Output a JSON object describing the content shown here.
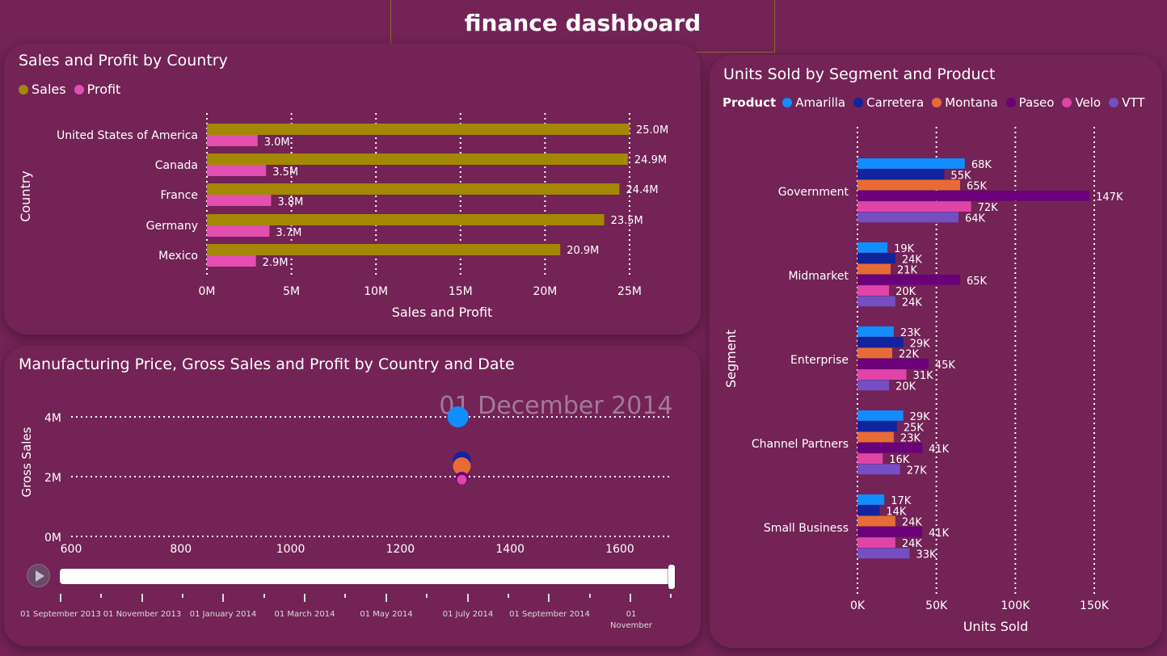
{
  "dashboard": {
    "title": "finance dashboard"
  },
  "colors": {
    "background": "#732356",
    "sales": "#a48705",
    "profit": "#e24fb1",
    "amarilla": "#118dff",
    "carretera": "#12239e",
    "montana": "#e66c37",
    "paseo": "#6b007b",
    "velo": "#e044a7",
    "vtt": "#744ec2"
  },
  "sales_profit": {
    "title": "Sales and Profit by Country",
    "legend": [
      {
        "label": "Sales"
      },
      {
        "label": "Profit"
      }
    ],
    "xlabel": "Sales and Profit",
    "ylabel": "Country",
    "countries": [
      "United States of America",
      "Canada",
      "France",
      "Germany",
      "Mexico"
    ],
    "sales_labels": [
      "25.0M",
      "24.9M",
      "24.4M",
      "23.5M",
      "20.9M"
    ],
    "profit_labels": [
      "3.0M",
      "3.5M",
      "3.8M",
      "3.7M",
      "2.9M"
    ],
    "xticks": [
      "0M",
      "5M",
      "10M",
      "15M",
      "20M",
      "25M"
    ]
  },
  "scatter": {
    "title": "Manufacturing Price, Gross Sales and Profit by Country and Date",
    "ylabel": "Gross Sales",
    "yticks": [
      "4M",
      "2M",
      "0M"
    ],
    "xticks": [
      "600",
      "800",
      "1000",
      "1200",
      "1400",
      "1600"
    ],
    "date_watermark": "01 December 2014",
    "timeline_labels": [
      "01 September 2013",
      "01 November 2013",
      "01 January 2014",
      "01 March 2014",
      "01 May 2014",
      "01 July 2014",
      "01 September 2014",
      "01",
      "November"
    ]
  },
  "units": {
    "title": "Units Sold by Segment and Product",
    "legend_title": "Product",
    "legend": [
      {
        "label": "Amarilla"
      },
      {
        "label": "Carretera"
      },
      {
        "label": "Montana"
      },
      {
        "label": "Paseo"
      },
      {
        "label": "Velo"
      },
      {
        "label": "VTT"
      }
    ],
    "xlabel": "Units Sold",
    "ylabel": "Segment",
    "xticks": [
      "0K",
      "50K",
      "100K",
      "150K"
    ],
    "segments": [
      {
        "name": "Government",
        "labels": [
          "68K",
          "55K",
          "65K",
          "147K",
          "72K",
          "64K"
        ]
      },
      {
        "name": "Midmarket",
        "labels": [
          "19K",
          "24K",
          "21K",
          "65K",
          "20K",
          "24K"
        ]
      },
      {
        "name": "Enterprise",
        "labels": [
          "23K",
          "29K",
          "22K",
          "45K",
          "31K",
          "20K"
        ]
      },
      {
        "name": "Channel Partners",
        "labels": [
          "29K",
          "25K",
          "23K",
          "41K",
          "16K",
          "27K"
        ]
      },
      {
        "name": "Small Business",
        "labels": [
          "17K",
          "14K",
          "24K",
          "41K",
          "24K",
          "33K"
        ]
      }
    ]
  },
  "chart_data": [
    {
      "type": "bar",
      "orientation": "horizontal",
      "title": "Sales and Profit by Country",
      "xlabel": "Sales and Profit",
      "ylabel": "Country",
      "categories": [
        "United States of America",
        "Canada",
        "France",
        "Germany",
        "Mexico"
      ],
      "series": [
        {
          "name": "Sales",
          "values": [
            25.0,
            24.9,
            24.4,
            23.5,
            20.9
          ]
        },
        {
          "name": "Profit",
          "values": [
            3.0,
            3.5,
            3.8,
            3.7,
            2.9
          ]
        }
      ],
      "xlim": [
        0,
        25
      ],
      "unit": "M",
      "legend": "top-left"
    },
    {
      "type": "scatter",
      "title": "Manufacturing Price, Gross Sales and Profit by Country and Date",
      "ylabel": "Gross Sales",
      "xlim": [
        600,
        1700
      ],
      "ylim": [
        0,
        4
      ],
      "unit": "M",
      "points": [
        {
          "x": 1305,
          "y": 4.0,
          "color": "#118dff",
          "size": 13
        },
        {
          "x": 1312,
          "y": 2.55,
          "color": "#12239e",
          "size": 11
        },
        {
          "x": 1312,
          "y": 2.35,
          "color": "#e66c37",
          "size": 11
        },
        {
          "x": 1312,
          "y": 1.95,
          "color": "#6b007b",
          "size": 8
        },
        {
          "x": 1312,
          "y": 1.9,
          "color": "#e044a7",
          "size": 6
        }
      ]
    },
    {
      "type": "bar",
      "orientation": "horizontal",
      "title": "Units Sold by Segment and Product",
      "xlabel": "Units Sold",
      "ylabel": "Segment",
      "categories": [
        "Government",
        "Midmarket",
        "Enterprise",
        "Channel Partners",
        "Small Business"
      ],
      "series": [
        {
          "name": "Amarilla",
          "values": [
            68,
            19,
            23,
            29,
            17
          ]
        },
        {
          "name": "Carretera",
          "values": [
            55,
            24,
            29,
            25,
            14
          ]
        },
        {
          "name": "Montana",
          "values": [
            65,
            21,
            22,
            23,
            24
          ]
        },
        {
          "name": "Paseo",
          "values": [
            147,
            65,
            45,
            41,
            41
          ]
        },
        {
          "name": "Velo",
          "values": [
            72,
            20,
            31,
            16,
            24
          ]
        },
        {
          "name": "VTT",
          "values": [
            64,
            24,
            20,
            27,
            33
          ]
        }
      ],
      "xlim": [
        0,
        150
      ],
      "unit": "K",
      "legend": "top-left"
    }
  ]
}
